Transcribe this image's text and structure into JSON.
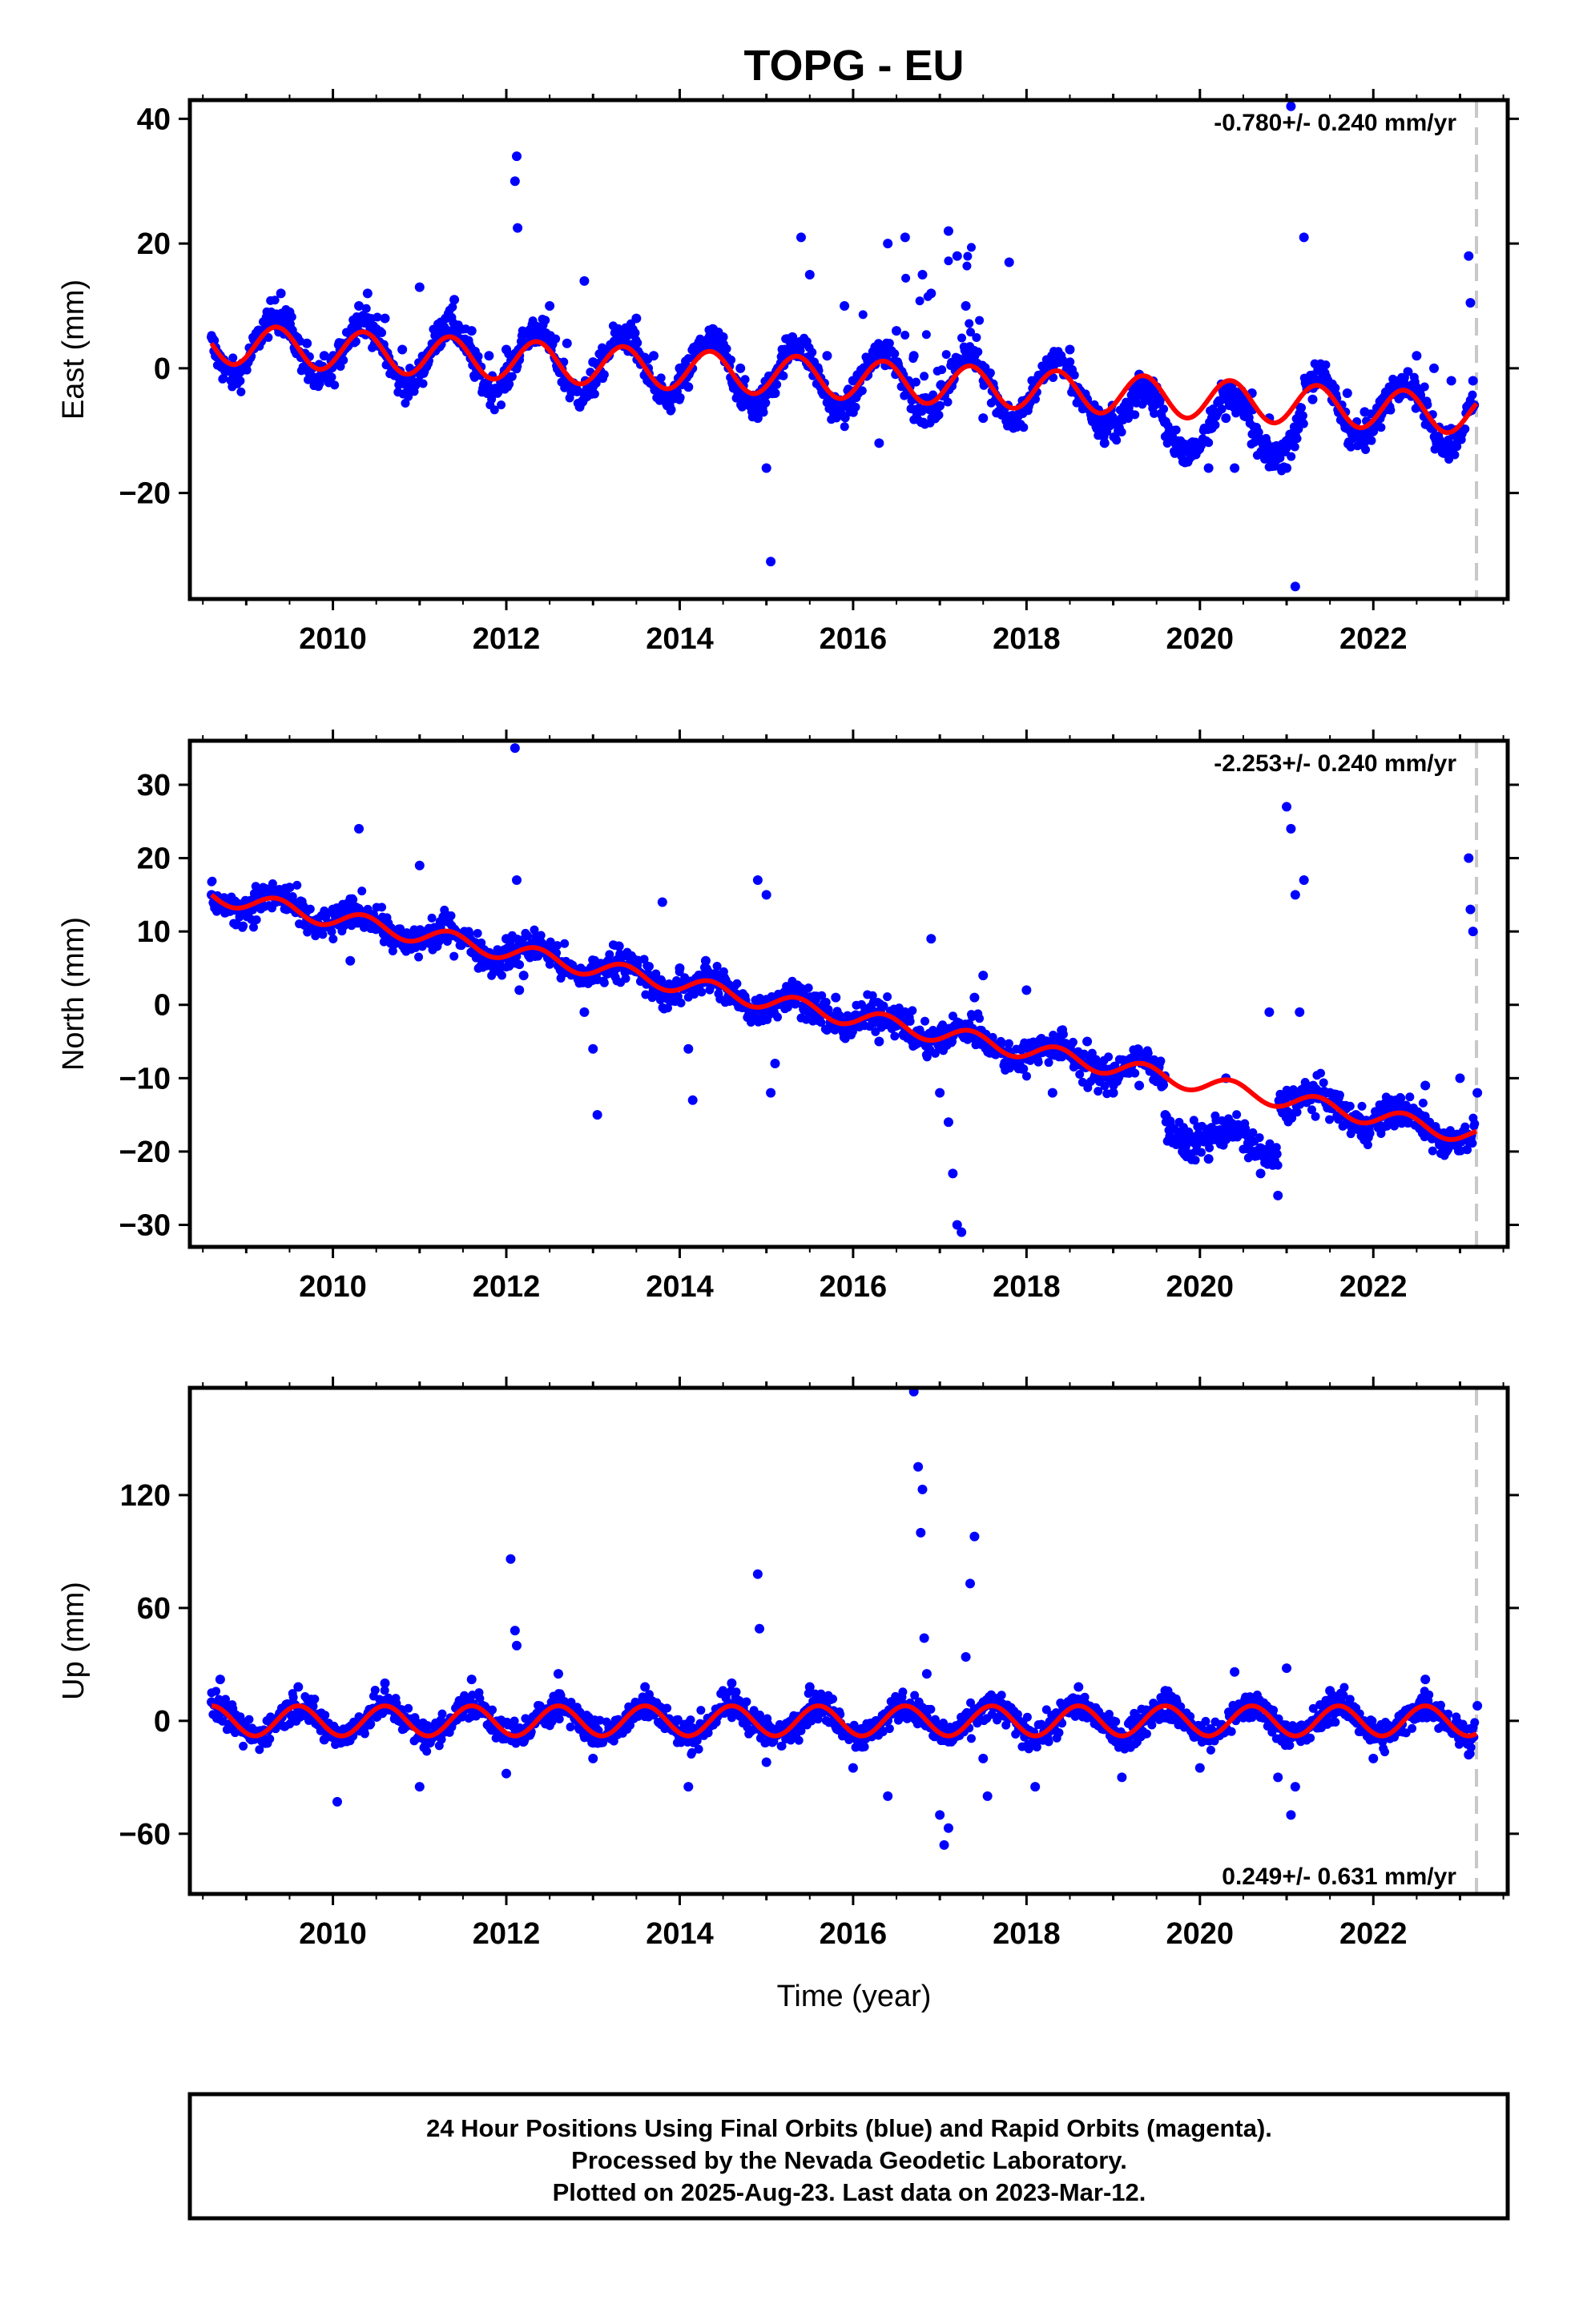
{
  "title": "TOPG - EU",
  "xlabel": "Time (year)",
  "footer": {
    "line1": "24 Hour Positions Using Final Orbits (blue) and Rapid Orbits (magenta).",
    "line2": "Processed by the Nevada Geodetic Laboratory.",
    "line3": "Plotted on 2025-Aug-23. Last data on 2023-Mar-12."
  },
  "colors": {
    "final_orbits": "#0000ff",
    "model_fit": "#ff0000",
    "last_data_marker": "#c8c8c8",
    "frame": "#000000"
  },
  "chart_data": [
    {
      "type": "scatter",
      "ylabel": "East (mm)",
      "rate_text": "-0.780+/- 0.240 mm/yr",
      "xlim": [
        2008.35,
        2023.55
      ],
      "ylim": [
        -37,
        43
      ],
      "xticks": [
        2010,
        2012,
        2014,
        2016,
        2018,
        2020,
        2022
      ],
      "yticks": [
        -20,
        0,
        20,
        40
      ],
      "last_data_year": 2023.19,
      "grid": false,
      "series": [
        {
          "role": "final_orbits_daily_positions",
          "points": [
            [
              2008.6,
              5
            ],
            [
              2008.7,
              2
            ],
            [
              2008.75,
              1
            ],
            [
              2009.2,
              6
            ],
            [
              2009.4,
              12
            ],
            [
              2009.5,
              9
            ],
            [
              2009.7,
              4
            ],
            [
              2009.9,
              2
            ],
            [
              2010.1,
              4
            ],
            [
              2010.3,
              10
            ],
            [
              2010.4,
              12
            ],
            [
              2010.6,
              8
            ],
            [
              2010.8,
              3
            ],
            [
              2011.0,
              13
            ],
            [
              2011.1,
              2
            ],
            [
              2011.3,
              8
            ],
            [
              2011.4,
              11
            ],
            [
              2011.6,
              6
            ],
            [
              2011.8,
              2
            ],
            [
              2012.0,
              3
            ],
            [
              2012.1,
              30
            ],
            [
              2012.12,
              34
            ],
            [
              2012.13,
              22.5
            ],
            [
              2012.15,
              2
            ],
            [
              2012.3,
              7
            ],
            [
              2012.5,
              10
            ],
            [
              2012.7,
              4
            ],
            [
              2012.9,
              14
            ],
            [
              2013.0,
              1
            ],
            [
              2013.3,
              6
            ],
            [
              2013.5,
              8
            ],
            [
              2013.7,
              2
            ],
            [
              2014.0,
              0
            ],
            [
              2014.1,
              -3
            ],
            [
              2014.2,
              2
            ],
            [
              2014.5,
              5
            ],
            [
              2014.7,
              0
            ],
            [
              2014.9,
              -8
            ],
            [
              2015.0,
              -16
            ],
            [
              2015.05,
              -31
            ],
            [
              2015.1,
              -4
            ],
            [
              2015.3,
              5
            ],
            [
              2015.4,
              21
            ],
            [
              2015.5,
              15
            ],
            [
              2015.7,
              2
            ],
            [
              2015.9,
              10
            ],
            [
              2016.0,
              -2
            ],
            [
              2016.2,
              0
            ],
            [
              2016.3,
              -12
            ],
            [
              2016.4,
              20
            ],
            [
              2016.5,
              6
            ],
            [
              2016.6,
              21
            ],
            [
              2016.7,
              2
            ],
            [
              2016.8,
              15
            ],
            [
              2016.9,
              12
            ],
            [
              2017.0,
              -6
            ],
            [
              2017.1,
              22
            ],
            [
              2017.2,
              18
            ],
            [
              2017.3,
              10
            ],
            [
              2017.4,
              2
            ],
            [
              2017.5,
              -8
            ],
            [
              2017.8,
              17
            ],
            [
              2018.0,
              -6
            ],
            [
              2018.3,
              0
            ],
            [
              2018.5,
              3
            ],
            [
              2018.7,
              -5
            ],
            [
              2018.9,
              -12
            ],
            [
              2019.1,
              -8
            ],
            [
              2019.3,
              -1
            ],
            [
              2019.5,
              -3
            ],
            [
              2019.7,
              -10
            ],
            [
              2019.9,
              -12
            ],
            [
              2020.1,
              -16
            ],
            [
              2020.3,
              -8
            ],
            [
              2020.4,
              -16
            ],
            [
              2020.6,
              -4
            ],
            [
              2020.8,
              -8
            ],
            [
              2021.0,
              -16
            ],
            [
              2021.05,
              42
            ],
            [
              2021.1,
              -35
            ],
            [
              2021.2,
              21
            ],
            [
              2021.3,
              -5
            ],
            [
              2021.5,
              -3
            ],
            [
              2021.7,
              -4
            ],
            [
              2021.9,
              -7
            ],
            [
              2022.1,
              -5
            ],
            [
              2022.3,
              -2
            ],
            [
              2022.5,
              2
            ],
            [
              2022.7,
              0
            ],
            [
              2022.9,
              -2
            ],
            [
              2023.1,
              18
            ],
            [
              2023.12,
              10.5
            ],
            [
              2023.15,
              -2
            ]
          ]
        },
        {
          "role": "model_fit_trend_plus_seasonal",
          "rate_mm_per_yr": -0.78
        }
      ]
    },
    {
      "type": "scatter",
      "ylabel": "North (mm)",
      "rate_text": "-2.253+/- 0.240 mm/yr",
      "xlim": [
        2008.35,
        2023.55
      ],
      "ylim": [
        -33,
        36
      ],
      "xticks": [
        2010,
        2012,
        2014,
        2016,
        2018,
        2020,
        2022
      ],
      "yticks": [
        -30,
        -20,
        -10,
        0,
        10,
        20,
        30
      ],
      "last_data_year": 2023.19,
      "grid": false,
      "series": [
        {
          "role": "final_orbits_daily_positions",
          "points": [
            [
              2008.6,
              15
            ],
            [
              2009.5,
              16
            ],
            [
              2010.0,
              13
            ],
            [
              2010.2,
              6
            ],
            [
              2010.3,
              24
            ],
            [
              2011.0,
              19
            ],
            [
              2011.2,
              8
            ],
            [
              2012.0,
              9
            ],
            [
              2012.1,
              35
            ],
            [
              2012.12,
              17
            ],
            [
              2012.15,
              2
            ],
            [
              2012.2,
              4
            ],
            [
              2012.9,
              -1
            ],
            [
              2013.0,
              -6
            ],
            [
              2013.05,
              -15
            ],
            [
              2013.3,
              8
            ],
            [
              2013.8,
              14
            ],
            [
              2014.0,
              5
            ],
            [
              2014.1,
              -6
            ],
            [
              2014.15,
              -13
            ],
            [
              2014.3,
              6
            ],
            [
              2014.9,
              17
            ],
            [
              2015.0,
              15
            ],
            [
              2015.05,
              -12
            ],
            [
              2015.1,
              -8
            ],
            [
              2015.8,
              1
            ],
            [
              2016.0,
              -2
            ],
            [
              2016.3,
              -5
            ],
            [
              2016.6,
              -1
            ],
            [
              2016.9,
              9
            ],
            [
              2017.0,
              -12
            ],
            [
              2017.1,
              -16
            ],
            [
              2017.15,
              -23
            ],
            [
              2017.2,
              -30
            ],
            [
              2017.25,
              -31
            ],
            [
              2017.4,
              1
            ],
            [
              2017.5,
              4
            ],
            [
              2018.0,
              2
            ],
            [
              2018.3,
              -12
            ],
            [
              2018.5,
              -7
            ],
            [
              2018.7,
              -5
            ],
            [
              2019.0,
              -12
            ],
            [
              2019.3,
              -11
            ],
            [
              2019.6,
              -15
            ],
            [
              2019.8,
              -20
            ],
            [
              2020.1,
              -21
            ],
            [
              2020.3,
              -10
            ],
            [
              2020.6,
              -20
            ],
            [
              2020.7,
              -23
            ],
            [
              2020.8,
              -1
            ],
            [
              2020.9,
              -26
            ],
            [
              2021.0,
              27
            ],
            [
              2021.05,
              24
            ],
            [
              2021.1,
              15
            ],
            [
              2021.15,
              -1
            ],
            [
              2021.2,
              17
            ],
            [
              2021.5,
              -12
            ],
            [
              2021.8,
              -15
            ],
            [
              2022.2,
              -13
            ],
            [
              2022.6,
              -11
            ],
            [
              2023.0,
              -10
            ],
            [
              2023.1,
              20
            ],
            [
              2023.12,
              13
            ],
            [
              2023.15,
              10
            ],
            [
              2023.2,
              -12
            ]
          ]
        },
        {
          "role": "model_fit_trend_plus_seasonal",
          "rate_mm_per_yr": -2.253
        }
      ]
    },
    {
      "type": "scatter",
      "ylabel": "Up (mm)",
      "rate_text": "0.249+/- 0.631 mm/yr",
      "xlim": [
        2008.35,
        2023.55
      ],
      "ylim": [
        -92,
        177
      ],
      "xticks": [
        2010,
        2012,
        2014,
        2016,
        2018,
        2020,
        2022
      ],
      "yticks": [
        -60,
        0,
        60,
        120
      ],
      "last_data_year": 2023.19,
      "grid": false,
      "series": [
        {
          "role": "final_orbits_daily_positions",
          "points": [
            [
              2008.6,
              10
            ],
            [
              2008.7,
              22
            ],
            [
              2009.6,
              18
            ],
            [
              2009.9,
              -10
            ],
            [
              2010.05,
              -43
            ],
            [
              2010.6,
              20
            ],
            [
              2011.0,
              -35
            ],
            [
              2011.6,
              22
            ],
            [
              2012.0,
              -28
            ],
            [
              2012.05,
              86
            ],
            [
              2012.1,
              48
            ],
            [
              2012.12,
              40
            ],
            [
              2012.6,
              25
            ],
            [
              2013.0,
              -20
            ],
            [
              2013.6,
              18
            ],
            [
              2014.1,
              -35
            ],
            [
              2014.6,
              20
            ],
            [
              2014.9,
              78
            ],
            [
              2014.92,
              49
            ],
            [
              2015.0,
              -22
            ],
            [
              2015.5,
              18
            ],
            [
              2016.0,
              -25
            ],
            [
              2016.4,
              -40
            ],
            [
              2016.7,
              175
            ],
            [
              2016.75,
              135
            ],
            [
              2016.78,
              100
            ],
            [
              2016.8,
              123
            ],
            [
              2016.82,
              44
            ],
            [
              2016.85,
              25
            ],
            [
              2017.0,
              -50
            ],
            [
              2017.05,
              -66
            ],
            [
              2017.1,
              -57
            ],
            [
              2017.3,
              34
            ],
            [
              2017.35,
              73
            ],
            [
              2017.4,
              98
            ],
            [
              2017.5,
              -20
            ],
            [
              2017.55,
              -40
            ],
            [
              2018.1,
              -35
            ],
            [
              2018.6,
              18
            ],
            [
              2019.1,
              -30
            ],
            [
              2019.6,
              16
            ],
            [
              2020.0,
              -25
            ],
            [
              2020.4,
              26
            ],
            [
              2020.9,
              -30
            ],
            [
              2021.0,
              28
            ],
            [
              2021.05,
              -50
            ],
            [
              2021.1,
              -35
            ],
            [
              2021.5,
              16
            ],
            [
              2022.0,
              -20
            ],
            [
              2022.6,
              22
            ],
            [
              2023.1,
              -18
            ],
            [
              2023.2,
              8
            ]
          ]
        },
        {
          "role": "model_fit_trend_plus_seasonal",
          "rate_mm_per_yr": 0.249
        }
      ]
    }
  ]
}
